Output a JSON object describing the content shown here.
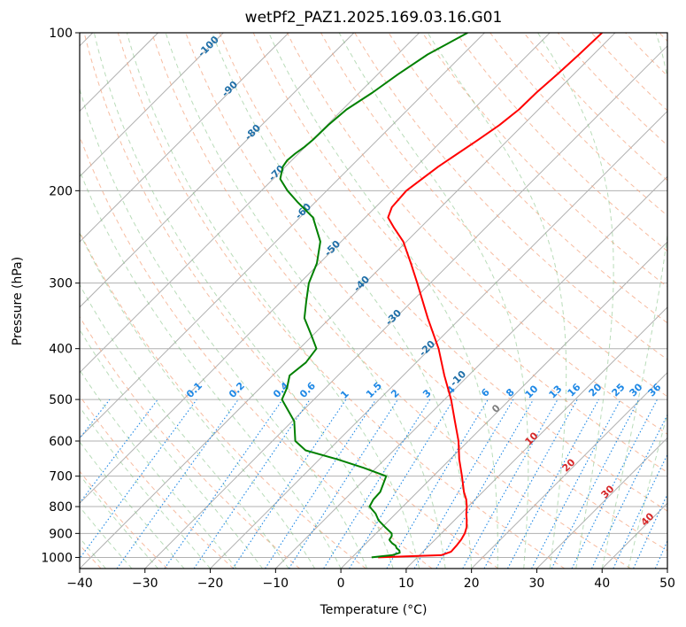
{
  "chart_data": {
    "type": "line",
    "title": "wetPf2_PAZ1.2025.169.03.16.G01",
    "xlabel": "Temperature (°C)",
    "ylabel": "Pressure (hPa)",
    "xlim": [
      -40,
      50
    ],
    "ylim": [
      1050,
      100
    ],
    "y_scale": "log",
    "x_ticks": [
      "−40",
      "−30",
      "−20",
      "−10",
      "0",
      "10",
      "20",
      "30",
      "40",
      "50"
    ],
    "y_ticks": [
      "100",
      "200",
      "300",
      "400",
      "500",
      "600",
      "700",
      "800",
      "900",
      "1000"
    ],
    "grid": true,
    "skew": true,
    "series": [
      {
        "color": "#ff0000",
        "pressure": [
          1000,
          995,
          990,
          975,
          950,
          925,
          900,
          875,
          850,
          825,
          800,
          775,
          750,
          700,
          650,
          600,
          550,
          500,
          450,
          400,
          350,
          300,
          275,
          250,
          235,
          225,
          215,
          200,
          180,
          160,
          150,
          140,
          130,
          120,
          110,
          100
        ],
        "temperature": [
          4.0,
          8.0,
          13.3,
          14.3,
          14.2,
          14.0,
          13.6,
          12.9,
          11.9,
          10.8,
          9.8,
          8.6,
          7.1,
          4.4,
          1.4,
          -1.5,
          -5.1,
          -9.0,
          -13.7,
          -18.7,
          -25.0,
          -32.0,
          -36.0,
          -40.5,
          -44.1,
          -46.5,
          -47.5,
          -47.8,
          -46.6,
          -44.6,
          -43.6,
          -43.0,
          -42.9,
          -42.5,
          -42.2,
          -42.0
        ]
      },
      {
        "color": "#008000",
        "pressure": [
          1000,
          995,
          990,
          980,
          970,
          960,
          950,
          940,
          930,
          925,
          910,
          900,
          875,
          850,
          825,
          800,
          775,
          750,
          700,
          675,
          650,
          625,
          600,
          550,
          500,
          475,
          450,
          425,
          400,
          375,
          350,
          325,
          300,
          275,
          250,
          225,
          210,
          200,
          190,
          180,
          175,
          170,
          165,
          160,
          150,
          140,
          130,
          120,
          110,
          100
        ],
        "temperature": [
          3.0,
          4.2,
          5.8,
          6.6,
          6.2,
          5.4,
          4.9,
          4.0,
          3.3,
          3.0,
          2.8,
          2.4,
          0.4,
          -1.6,
          -3.1,
          -5.1,
          -5.6,
          -5.7,
          -7.2,
          -11.9,
          -17.3,
          -23.5,
          -26.5,
          -29.7,
          -34.9,
          -35.9,
          -37.4,
          -36.9,
          -37.4,
          -40.5,
          -43.9,
          -46.2,
          -48.6,
          -50.4,
          -53.2,
          -58.0,
          -62.8,
          -66.0,
          -68.9,
          -70.4,
          -70.7,
          -70.5,
          -70.1,
          -69.9,
          -69.8,
          -69.4,
          -68.0,
          -66.9,
          -65.4,
          -62.6
        ]
      }
    ],
    "mixing_ratio_labels": [
      "0.1",
      "0.2",
      "0.4",
      "0.6",
      "1",
      "1.5",
      "2",
      "3",
      "4",
      "6",
      "8",
      "10",
      "13",
      "16",
      "20",
      "25",
      "30",
      "36"
    ],
    "moist_adiabat_labels": [
      "0",
      "10",
      "20",
      "30",
      "40"
    ],
    "dry_adiabat_labels": [
      "-100",
      "-90",
      "-80",
      "-70",
      "-60",
      "-50",
      "-40",
      "-30",
      "-20",
      "-10"
    ]
  },
  "colors": {
    "temperature_line": "#ff0000",
    "dewpoint_line": "#008000",
    "isotherm": "#b0b0b0",
    "isobar": "#b0b0b0",
    "dry_adiabat": "#f4a582",
    "moist_adiabat": "#7fbf7f",
    "mixing_ratio": "#1e88e5",
    "dry_adiabat_label": "#1f6fa8",
    "moist_adiabat_label": "#d62728",
    "moist_zero_label": "#7f7f7f"
  }
}
